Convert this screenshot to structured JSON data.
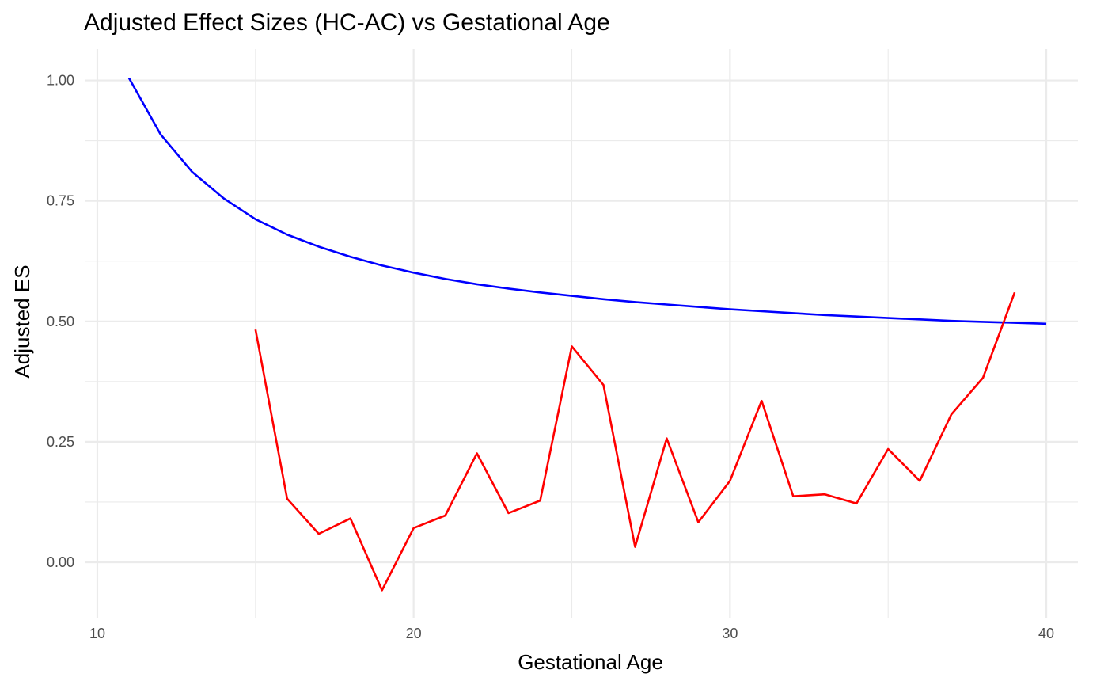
{
  "chart_data": {
    "type": "line",
    "title": "Adjusted Effect Sizes (HC-AC) vs Gestational Age",
    "xlabel": "Gestational Age",
    "ylabel": "Adjusted ES",
    "xlim": [
      9.6,
      41.0
    ],
    "ylim": [
      -0.115,
      1.065
    ],
    "x_ticks": [
      10,
      20,
      30,
      40
    ],
    "y_ticks": [
      0.0,
      0.25,
      0.5,
      0.75,
      1.0
    ],
    "x_tick_labels": [
      "10",
      "20",
      "30",
      "40"
    ],
    "y_tick_labels": [
      "0.00",
      "0.25",
      "0.50",
      "0.75",
      "1.00"
    ],
    "x_minor_ticks": [
      15,
      25,
      35
    ],
    "y_minor_ticks": [
      0.125,
      0.375,
      0.625,
      0.875
    ],
    "grid": true,
    "legend": "none",
    "series": [
      {
        "color": "#0000ff",
        "x": [
          11,
          12,
          13,
          14,
          15,
          16,
          17,
          18,
          19,
          20,
          21,
          22,
          23,
          24,
          25,
          26,
          27,
          28,
          29,
          30,
          31,
          32,
          33,
          34,
          35,
          36,
          37,
          38,
          39,
          40
        ],
        "values": [
          1.005,
          0.888,
          0.81,
          0.755,
          0.712,
          0.68,
          0.655,
          0.634,
          0.616,
          0.601,
          0.588,
          0.577,
          0.568,
          0.56,
          0.553,
          0.546,
          0.54,
          0.535,
          0.53,
          0.525,
          0.521,
          0.517,
          0.513,
          0.51,
          0.507,
          0.504,
          0.501,
          0.499,
          0.497,
          0.495
        ]
      },
      {
        "color": "#ff0000",
        "x": [
          15,
          16,
          17,
          18,
          19,
          20,
          21,
          22,
          23,
          24,
          25,
          26,
          27,
          28,
          29,
          30,
          31,
          32,
          33,
          34,
          35,
          36,
          37,
          38,
          39
        ],
        "values": [
          0.483,
          0.132,
          0.059,
          0.091,
          -0.058,
          0.071,
          0.097,
          0.226,
          0.102,
          0.128,
          0.448,
          0.368,
          0.032,
          0.257,
          0.083,
          0.169,
          0.335,
          0.137,
          0.141,
          0.122,
          0.235,
          0.169,
          0.307,
          0.383,
          0.56
        ]
      }
    ]
  }
}
